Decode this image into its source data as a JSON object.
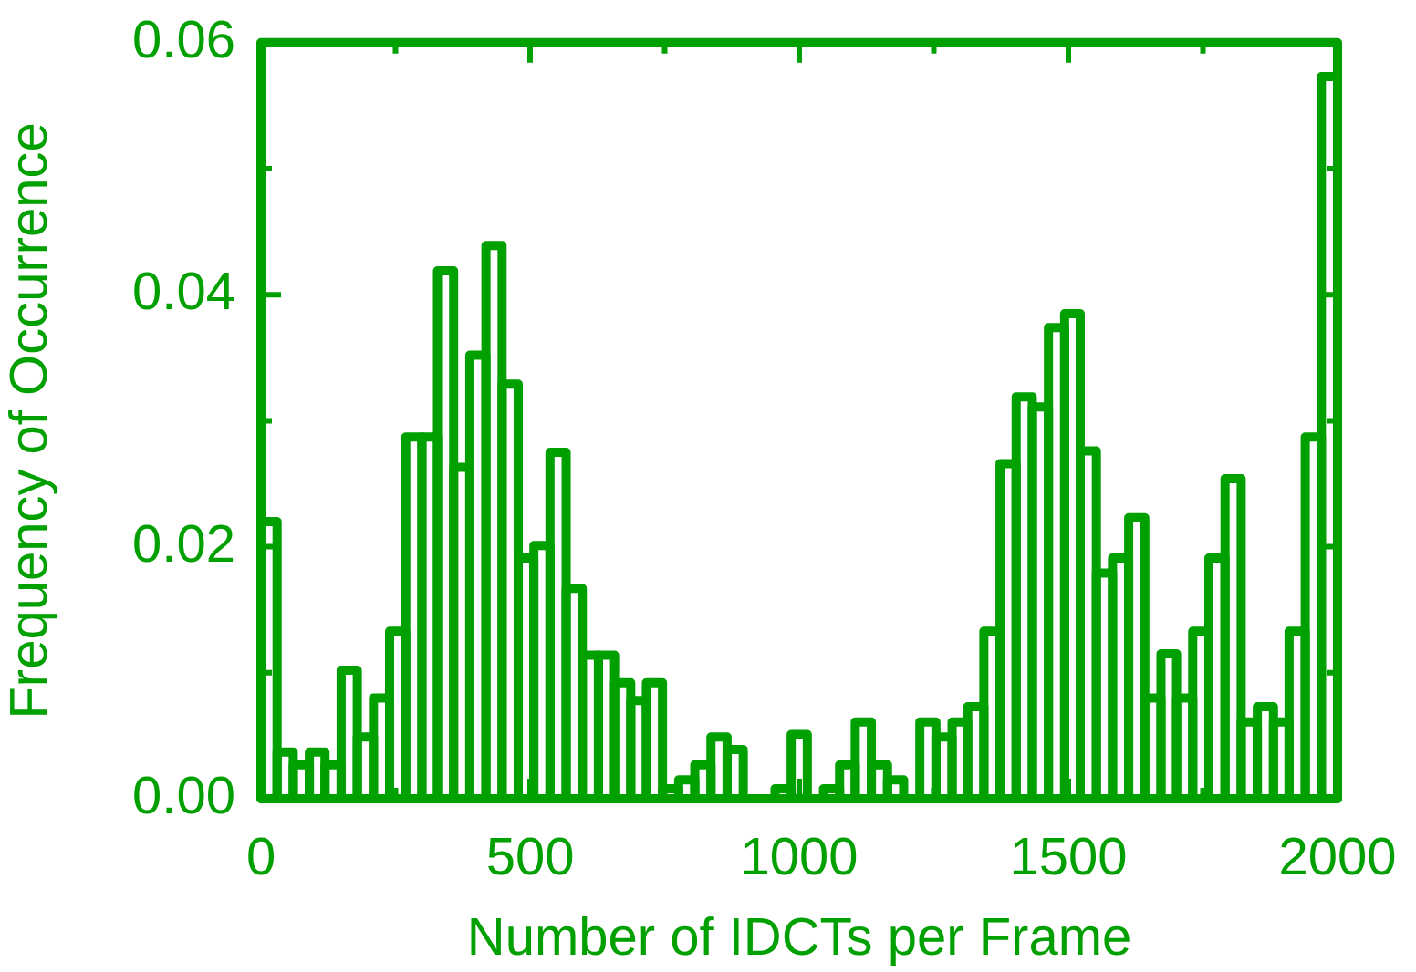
{
  "chart_data": {
    "type": "histogram",
    "xlabel": "Number of IDCTs per Frame",
    "ylabel": "Frequency of Occurrence",
    "color": "#00a000",
    "bins": [
      0,
      30,
      60,
      90,
      119,
      149,
      179,
      209,
      239,
      269,
      299,
      328,
      358,
      388,
      418,
      448,
      478,
      507,
      537,
      567,
      597,
      627,
      657,
      687,
      716,
      746,
      776,
      806,
      836,
      866,
      896,
      955,
      985,
      1015,
      1045,
      1075,
      1104,
      1134,
      1164,
      1194,
      1224,
      1254,
      1284,
      1313,
      1343,
      1373,
      1403,
      1433,
      1463,
      1493,
      1522,
      1552,
      1582,
      1612,
      1642,
      1672,
      1701,
      1731,
      1761,
      1791,
      1821,
      1851,
      1881,
      1910,
      1940,
      1970,
      2000
    ],
    "values": [
      0.022,
      0.0037,
      0.0027,
      0.0037,
      0.0027,
      0.0102,
      0.0049,
      0.008,
      0.0133,
      0.0287,
      0.0287,
      0.0419,
      0.0263,
      0.0352,
      0.0439,
      0.0329,
      0.0191,
      0.0201,
      0.0275,
      0.0167,
      0.0114,
      0.0114,
      0.0092,
      0.0078,
      0.0092,
      0.0008,
      0.0015,
      0.0027,
      0.0049,
      0.0039,
      0,
      0.0008,
      0.0051,
      0,
      0.0008,
      0.0027,
      0.0061,
      0.0027,
      0.0015,
      0,
      0.0061,
      0.0049,
      0.0061,
      0.0073,
      0.0133,
      0.0266,
      0.0319,
      0.0311,
      0.0374,
      0.0385,
      0.0276,
      0.0179,
      0.0191,
      0.0223,
      0.008,
      0.0115,
      0.008,
      0.0133,
      0.0191,
      0.0254,
      0.0061,
      0.0073,
      0.0061,
      0.0133,
      0.0287,
      0.0573
    ],
    "xlim": [
      0,
      2000
    ],
    "xticks": [
      0,
      {
        "value": 250,
        "label": null
      },
      500,
      {
        "value": 750,
        "label": null
      },
      1000,
      {
        "value": 1250,
        "label": null
      },
      1500,
      {
        "value": 1750,
        "label": null
      },
      2000
    ],
    "ylim": [
      0,
      0.06
    ],
    "yticks": [
      {
        "value": 0,
        "label": "0.00"
      },
      {
        "value": 0.01,
        "label": null
      },
      {
        "value": 0.02,
        "label": "0.02"
      },
      {
        "value": 0.03,
        "label": null
      },
      {
        "value": 0.04,
        "label": "0.04"
      },
      {
        "value": 0.05,
        "label": null
      },
      {
        "value": 0.06,
        "label": "0.06"
      }
    ]
  }
}
